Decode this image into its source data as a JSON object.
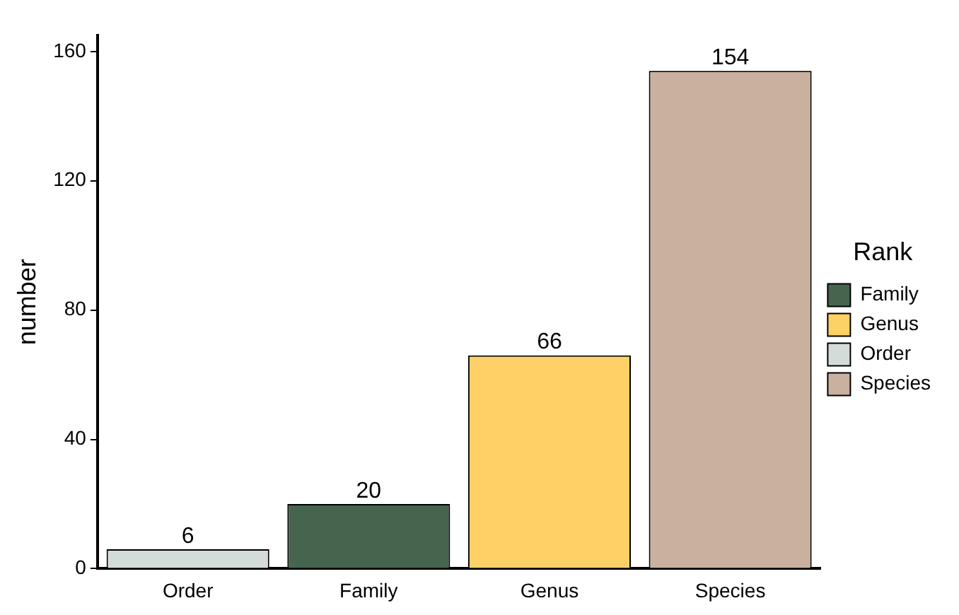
{
  "chart_data": {
    "type": "bar",
    "ylabel": "number",
    "legend_title": "Rank",
    "legend": "right",
    "categories": [
      "Order",
      "Family",
      "Genus",
      "Species"
    ],
    "series": [
      {
        "name": "Family",
        "color": "#46654f",
        "values": [
          null,
          20,
          null,
          null
        ]
      },
      {
        "name": "Genus",
        "color": "#fdd166",
        "values": [
          null,
          null,
          66,
          null
        ]
      },
      {
        "name": "Order",
        "color": "#d3dcd8",
        "values": [
          6,
          null,
          null,
          null
        ]
      },
      {
        "name": "Species",
        "color": "#c9b09f",
        "values": [
          null,
          null,
          null,
          154
        ]
      }
    ],
    "ylim": [
      0,
      165
    ],
    "yticks": [
      0,
      40,
      80,
      120,
      160
    ],
    "grid": false,
    "data_labels": true
  }
}
